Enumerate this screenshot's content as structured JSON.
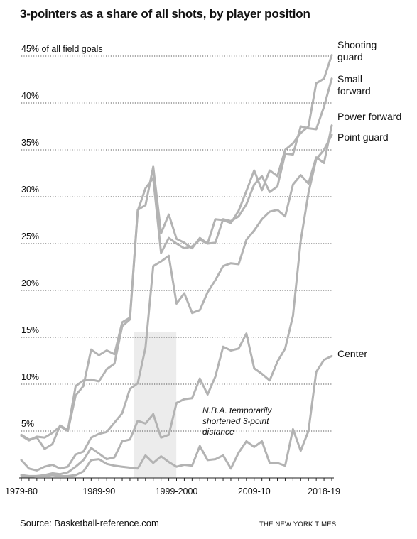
{
  "title": "3-pointers as a share of all shots, by player position",
  "source": "Source: Basketball-reference.com",
  "credit": "THE NEW YORK TIMES",
  "colors": {
    "line": "#b3b3b3",
    "grid": "#555555",
    "shade": "#ececec",
    "text": "#111111"
  },
  "chart_data": {
    "type": "line",
    "ylabel": "",
    "xlabel": "",
    "ylim": [
      0,
      45
    ],
    "xlim": [
      1979,
      2019
    ],
    "y_ticks": [
      {
        "value": 45,
        "label": "45% of all field goals"
      },
      {
        "value": 40,
        "label": "40%"
      },
      {
        "value": 35,
        "label": "35%"
      },
      {
        "value": 30,
        "label": "30%"
      },
      {
        "value": 25,
        "label": "25%"
      },
      {
        "value": 20,
        "label": "20%"
      },
      {
        "value": 15,
        "label": "15%"
      },
      {
        "value": 10,
        "label": "10%"
      },
      {
        "value": 5,
        "label": "5%"
      }
    ],
    "x_ticks": [
      {
        "value": 1979,
        "label": "1979-80"
      },
      {
        "value": 1989,
        "label": "1989-90"
      },
      {
        "value": 1999,
        "label": "1999-2000"
      },
      {
        "value": 2009,
        "label": "2009-10"
      },
      {
        "value": 2018,
        "label": "2018-19"
      }
    ],
    "shaded_period": {
      "from": 1994,
      "to": 1996,
      "label": "N.B.A. temporarily shortened 3-point distance"
    },
    "x": [
      1979,
      1980,
      1981,
      1982,
      1983,
      1984,
      1985,
      1986,
      1987,
      1988,
      1989,
      1990,
      1991,
      1992,
      1993,
      1994,
      1995,
      1996,
      1997,
      1998,
      1999,
      2000,
      2001,
      2002,
      2003,
      2004,
      2005,
      2006,
      2007,
      2008,
      2009,
      2010,
      2011,
      2012,
      2013,
      2014,
      2015,
      2016,
      2017,
      2018,
      2019
    ],
    "series": [
      {
        "name": "Shooting guard",
        "values": [
          4.5,
          4.0,
          4.4,
          4.3,
          4.8,
          5.5,
          5.0,
          8.8,
          9.8,
          13.7,
          13.1,
          13.6,
          13.2,
          16.6,
          17.1,
          28.6,
          29.1,
          33.2,
          26.1,
          28.1,
          25.5,
          25.1,
          24.5,
          25.6,
          25.0,
          27.6,
          27.5,
          27.2,
          28.5,
          30.6,
          32.8,
          30.7,
          32.8,
          32.2,
          35.0,
          35.7,
          36.8,
          37.5,
          42.1,
          42.6,
          45.1
        ]
      },
      {
        "name": "Small forward",
        "values": [
          4.6,
          4.1,
          4.3,
          3.1,
          3.6,
          5.6,
          5.1,
          9.8,
          10.4,
          10.5,
          10.3,
          11.6,
          12.2,
          16.2,
          16.9,
          28.5,
          30.9,
          32.0,
          24.0,
          25.6,
          25.0,
          24.5,
          24.7,
          25.4,
          25.0,
          25.1,
          27.6,
          27.4,
          27.9,
          29.2,
          31.3,
          32.2,
          30.5,
          31.1,
          34.6,
          34.5,
          37.5,
          37.3,
          37.2,
          39.6,
          42.6
        ]
      },
      {
        "name": "Power forward",
        "values": [
          1.9,
          1.0,
          0.8,
          1.2,
          1.4,
          1.0,
          1.2,
          2.5,
          2.8,
          4.3,
          4.7,
          4.9,
          5.9,
          6.9,
          9.5,
          10.1,
          13.9,
          22.6,
          23.1,
          23.7,
          18.6,
          19.7,
          17.6,
          17.9,
          19.8,
          21.1,
          22.6,
          22.9,
          22.8,
          25.4,
          26.4,
          27.6,
          28.4,
          28.6,
          27.9,
          31.3,
          32.3,
          31.4,
          34.2,
          33.6,
          37.6
        ]
      },
      {
        "name": "Point guard",
        "values": [
          0.3,
          0.2,
          0.2,
          0.3,
          0.5,
          0.4,
          0.6,
          1.2,
          1.9,
          3.2,
          2.6,
          2.0,
          2.2,
          3.9,
          4.1,
          6.1,
          5.8,
          6.8,
          4.3,
          4.6,
          8.0,
          8.4,
          8.5,
          10.6,
          8.9,
          10.8,
          14.0,
          13.6,
          13.8,
          15.4,
          11.7,
          11.1,
          10.4,
          12.4,
          13.8,
          17.3,
          25.3,
          30.4,
          34.0,
          35.0,
          36.6
        ]
      },
      {
        "name": "Center",
        "values": [
          0.1,
          0.1,
          0.2,
          0.2,
          0.3,
          0.2,
          0.2,
          0.3,
          0.7,
          1.9,
          2.0,
          1.5,
          1.3,
          1.2,
          1.1,
          1.0,
          2.4,
          1.6,
          2.3,
          1.7,
          1.2,
          1.4,
          1.3,
          3.4,
          1.9,
          2.0,
          2.4,
          1.0,
          2.7,
          3.9,
          3.3,
          3.9,
          1.6,
          1.6,
          1.3,
          5.2,
          2.9,
          5.0,
          11.3,
          12.6,
          13.0
        ]
      }
    ]
  }
}
